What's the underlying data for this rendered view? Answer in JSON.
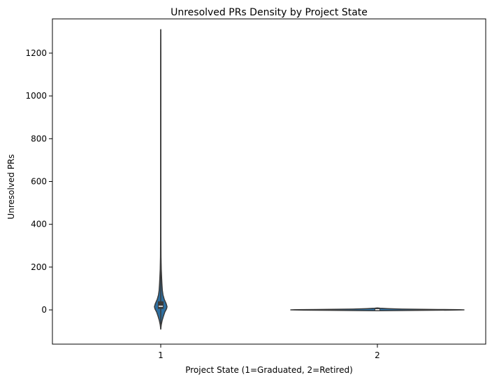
{
  "chart_data": {
    "type": "violin",
    "title": "Unresolved PRs Density by Project State",
    "xlabel": "Project State (1=Graduated, 2=Retired)",
    "ylabel": "Unresolved PRs",
    "categories": [
      "1",
      "2"
    ],
    "ylim": [
      -160,
      1360
    ],
    "yticks": [
      0,
      200,
      400,
      600,
      800,
      1000,
      1200
    ],
    "grid": false,
    "series": [
      {
        "category": "1",
        "min": -90,
        "max": 1310,
        "q1": 5,
        "median": 17,
        "q3": 40,
        "density_profile": [
          {
            "y": -90,
            "w": 0.0
          },
          {
            "y": -70,
            "w": 0.08
          },
          {
            "y": -50,
            "w": 0.22
          },
          {
            "y": -30,
            "w": 0.42
          },
          {
            "y": -10,
            "w": 0.65
          },
          {
            "y": 5,
            "w": 0.92
          },
          {
            "y": 15,
            "w": 1.0
          },
          {
            "y": 30,
            "w": 0.85
          },
          {
            "y": 50,
            "w": 0.55
          },
          {
            "y": 70,
            "w": 0.36
          },
          {
            "y": 90,
            "w": 0.26
          },
          {
            "y": 120,
            "w": 0.19
          },
          {
            "y": 150,
            "w": 0.14
          },
          {
            "y": 190,
            "w": 0.08
          },
          {
            "y": 250,
            "w": 0.04
          },
          {
            "y": 350,
            "w": 0.025
          },
          {
            "y": 600,
            "w": 0.02
          },
          {
            "y": 900,
            "w": 0.018
          },
          {
            "y": 1200,
            "w": 0.015
          },
          {
            "y": 1310,
            "w": 0.0
          }
        ]
      },
      {
        "category": "2",
        "min": -4,
        "max": 9,
        "q1": -1,
        "median": 1,
        "q3": 5,
        "density_profile": [
          {
            "y": -4,
            "w": 0.0
          },
          {
            "y": -3,
            "w": 0.25
          },
          {
            "y": -2,
            "w": 0.55
          },
          {
            "y": -1,
            "w": 0.85
          },
          {
            "y": 0,
            "w": 1.0
          },
          {
            "y": 1,
            "w": 0.95
          },
          {
            "y": 2,
            "w": 0.7
          },
          {
            "y": 3,
            "w": 0.45
          },
          {
            "y": 4,
            "w": 0.28
          },
          {
            "y": 5,
            "w": 0.18
          },
          {
            "y": 6,
            "w": 0.12
          },
          {
            "y": 7,
            "w": 0.07
          },
          {
            "y": 8,
            "w": 0.03
          },
          {
            "y": 9,
            "w": 0.0
          }
        ]
      }
    ],
    "colors": {
      "fill": "#2e6fa0",
      "edge": "#3a3a3a",
      "box": "#3a3a3a",
      "median": "#ffffff",
      "axis": "#000000"
    }
  }
}
